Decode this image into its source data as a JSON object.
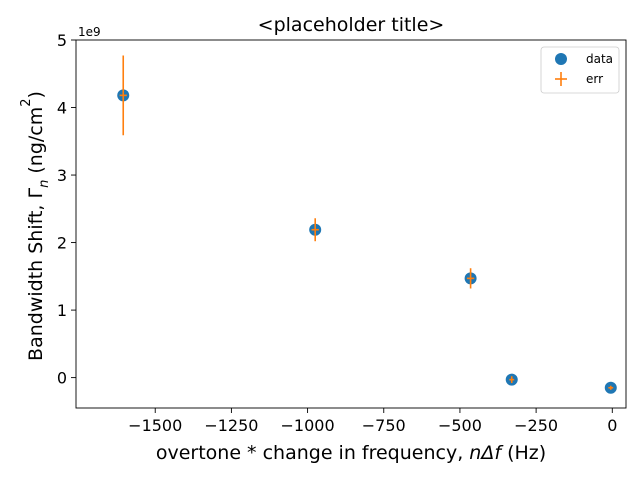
{
  "chart_data": {
    "type": "scatter",
    "title": "<placeholder title>",
    "xlabel_prefix": "overtone * change in frequency, ",
    "xlabel_math": "nΔf",
    "xlabel_suffix": " (Hz)",
    "ylabel_prefix": "Bandwidth Shift, Γ",
    "ylabel_sub": "n",
    "ylabel_suffix": " (ng/cm",
    "ylabel_sup": "2",
    "ylabel_close": ")",
    "y_exponent_label": "1e9",
    "xlim": [
      -1760,
      45
    ],
    "ylim": [
      -0.45,
      5.0
    ],
    "x_ticks": [
      -1500,
      -1250,
      -1000,
      -750,
      -500,
      -250,
      0
    ],
    "x_tick_labels": [
      "−1500",
      "−1250",
      "−1000",
      "−750",
      "−500",
      "−250",
      "0"
    ],
    "y_ticks": [
      0,
      1,
      2,
      3,
      4,
      5
    ],
    "y_tick_labels": [
      "0",
      "1",
      "2",
      "3",
      "4",
      "5"
    ],
    "legend_position": "top-right",
    "series": [
      {
        "name": "data",
        "kind": "points",
        "color": "#1f77b4",
        "x": [
          -1605,
          -975,
          -465,
          -330,
          -5
        ],
        "y": [
          4.18,
          2.19,
          1.47,
          -0.03,
          -0.15
        ]
      },
      {
        "name": "err",
        "kind": "errorbar",
        "color": "#ff7f0e",
        "x": [
          -1605,
          -975,
          -465,
          -330,
          -5
        ],
        "y": [
          4.18,
          2.19,
          1.47,
          -0.03,
          -0.15
        ],
        "yerr": [
          0.59,
          0.17,
          0.15,
          0.05,
          0.03
        ],
        "xerr": [
          12,
          12,
          12,
          8,
          8
        ]
      }
    ]
  }
}
